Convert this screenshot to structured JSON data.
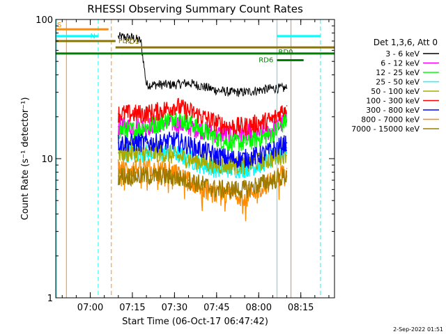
{
  "chart_data": {
    "type": "line",
    "title": "RHESSI Observing Summary Count Rates",
    "xlabel": "Start Time (06-Oct-17 06:47:42)",
    "ylabel": "Count Rate (s⁻¹ detector⁻¹)",
    "y_scale": "log",
    "ylim": [
      1,
      100
    ],
    "xlim": [
      "06:47:42",
      "08:27:00"
    ],
    "x_ticks": [
      "07:00",
      "07:15",
      "07:30",
      "07:45",
      "08:00",
      "08:15"
    ],
    "y_ticks": [
      "1",
      "10",
      "100"
    ],
    "grid": false,
    "legend": {
      "placement": "right",
      "header": "Det 1,3,6, Att 0"
    },
    "x_unit": "HH:MM UT",
    "series": [
      {
        "name": "3 - 6 keV",
        "color": "#000000",
        "x": [
          "07:10",
          "07:15",
          "07:18",
          "07:20",
          "07:25",
          "07:30",
          "07:35",
          "07:40",
          "07:45",
          "07:50",
          "07:55",
          "08:00",
          "08:05",
          "08:10"
        ],
        "values": [
          75,
          74,
          70,
          34,
          34,
          34,
          35,
          33,
          31,
          30,
          30,
          31,
          32,
          32
        ]
      },
      {
        "name": "6 - 12 keV",
        "color": "#ff00ff",
        "x": [
          "07:10",
          "07:15",
          "07:20",
          "07:25",
          "07:30",
          "07:35",
          "07:40",
          "07:45",
          "07:50",
          "07:55",
          "08:00",
          "08:05",
          "08:10"
        ],
        "values": [
          17,
          17,
          17,
          18,
          18,
          17,
          16,
          15,
          15,
          15,
          15,
          16,
          19
        ]
      },
      {
        "name": "12 - 25 keV",
        "color": "#00ff00",
        "x": [
          "07:10",
          "07:15",
          "07:20",
          "07:25",
          "07:30",
          "07:35",
          "07:40",
          "07:45",
          "07:50",
          "07:55",
          "08:00",
          "08:05",
          "08:10"
        ],
        "values": [
          16,
          16,
          17,
          18,
          20,
          18,
          16,
          14,
          13,
          13,
          14,
          15,
          19
        ]
      },
      {
        "name": "25 - 50 keV",
        "color": "#00ffff",
        "x": [
          "07:10",
          "07:15",
          "07:20",
          "07:25",
          "07:30",
          "07:35",
          "07:40",
          "07:45",
          "07:50",
          "07:55",
          "08:00",
          "08:05",
          "08:10"
        ],
        "values": [
          11,
          11,
          11,
          11,
          11,
          10,
          9,
          8.5,
          8.5,
          8.5,
          9,
          10,
          12
        ]
      },
      {
        "name": "50 - 100 keV",
        "color": "#aaaa00",
        "x": [
          "07:10",
          "07:15",
          "07:20",
          "07:25",
          "07:30",
          "07:35",
          "07:40",
          "07:45",
          "07:50",
          "07:55",
          "08:00",
          "08:05",
          "08:10"
        ],
        "values": [
          11,
          11,
          11,
          11,
          10.5,
          10,
          9.5,
          9,
          9,
          9,
          9.5,
          10,
          11
        ]
      },
      {
        "name": "100 - 300 keV",
        "color": "#ff0000",
        "x": [
          "07:10",
          "07:15",
          "07:20",
          "07:25",
          "07:30",
          "07:35",
          "07:40",
          "07:45",
          "07:50",
          "07:55",
          "08:00",
          "08:05",
          "08:10"
        ],
        "values": [
          21,
          21,
          21,
          22,
          24,
          22,
          20,
          18,
          17,
          17,
          18,
          19,
          24
        ]
      },
      {
        "name": "300 - 800 keV",
        "color": "#0000ff",
        "x": [
          "07:10",
          "07:15",
          "07:20",
          "07:25",
          "07:30",
          "07:35",
          "07:40",
          "07:45",
          "07:50",
          "07:55",
          "08:00",
          "08:05",
          "08:10"
        ],
        "values": [
          13,
          13,
          13,
          13,
          13.5,
          12.5,
          11.5,
          10.5,
          10,
          10,
          10.5,
          11.5,
          13
        ]
      },
      {
        "name": "800 - 7000 keV",
        "color": "#ff8c00",
        "x": [
          "07:10",
          "07:15",
          "07:20",
          "07:25",
          "07:30",
          "07:35",
          "07:40",
          "07:45",
          "07:50",
          "07:55",
          "08:00",
          "08:05",
          "08:10"
        ],
        "values": [
          8.5,
          8.5,
          8.5,
          8.5,
          8,
          7,
          6,
          5.5,
          5.5,
          5.5,
          6,
          7,
          8.5
        ]
      },
      {
        "name": "7000 - 15000 keV",
        "color": "#9c7a00",
        "x": [
          "07:10",
          "07:15",
          "07:20",
          "07:25",
          "07:30",
          "07:35",
          "07:40",
          "07:45",
          "07:50",
          "07:55",
          "08:00",
          "08:05",
          "08:10"
        ],
        "values": [
          7.5,
          7.5,
          7.5,
          7.5,
          7.3,
          7,
          6.5,
          6,
          6,
          6,
          6.5,
          7,
          7.5
        ]
      }
    ],
    "flags": [
      {
        "label": "S",
        "color": "#ff8c00",
        "start": "06:47:42",
        "end": "07:06:30",
        "level": 85
      },
      {
        "label": "N",
        "color": "#00ffff",
        "start": "06:47:42",
        "end": "07:02:50",
        "level": 76
      },
      {
        "label": "FD1",
        "color": "#8b7500",
        "start": "07:09:00",
        "end": "08:27:00",
        "level": 63
      },
      {
        "label": "FD2",
        "color": "#8b7500",
        "start": "06:47:42",
        "end": "07:09:00",
        "level": 70
      },
      {
        "label": "RD0",
        "color": "#008000",
        "start": "06:47:42",
        "end": "08:27:00",
        "level": 57
      },
      {
        "label": "RD6",
        "color": "#008000",
        "start": "08:06:30",
        "end": "08:16:00",
        "level": 51
      },
      {
        "label": "",
        "color": "#00ffff",
        "start": "08:06:30",
        "end": "08:22:00",
        "level": 76
      }
    ],
    "vertical_markers": [
      {
        "time": "06:48:00",
        "color": "#00ffff",
        "style": "solid"
      },
      {
        "time": "06:51:30",
        "color": "#ff8c00",
        "style": "solid"
      },
      {
        "time": "07:02:50",
        "color": "#00ffff",
        "style": "dashed"
      },
      {
        "time": "07:07:30",
        "color": "#ff8c00",
        "style": "dashed"
      },
      {
        "time": "08:06:30",
        "color": "#00ffff",
        "style": "solid"
      },
      {
        "time": "08:11:30",
        "color": "#ff8c00",
        "style": "solid"
      },
      {
        "time": "08:22:00",
        "color": "#00ffff",
        "style": "dashed"
      }
    ]
  },
  "footer": {
    "date_stamp": "2-Sep-2022 01:51"
  }
}
